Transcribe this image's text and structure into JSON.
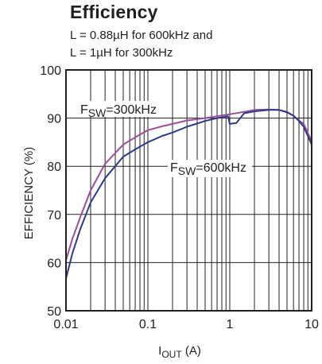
{
  "chart_data": {
    "type": "line",
    "title": "Efficiency",
    "subtitle_lines": [
      "L = 0.88µH for 600kHz and",
      "L = 1µH for 300kHz"
    ],
    "xlabel_main": "I",
    "xlabel_sub": "OUT",
    "xlabel_unit": " (A)",
    "ylabel": "EFFICIENCY (%)",
    "x_scale": "log",
    "xlim": [
      0.01,
      10
    ],
    "ylim": [
      50,
      100
    ],
    "x_ticks": [
      0.01,
      0.1,
      1,
      10
    ],
    "x_tick_labels": [
      "0.01",
      "0.1",
      "1",
      "10"
    ],
    "y_ticks": [
      50,
      60,
      70,
      80,
      90,
      100
    ],
    "y_tick_labels": [
      "50",
      "60",
      "70",
      "80",
      "90",
      "100"
    ],
    "grid": true,
    "series": [
      {
        "name": "FSW=300kHz",
        "name_main": "F",
        "name_sub": "SW",
        "name_rest": "=300kHz",
        "color": "#9b4f96",
        "x": [
          0.01,
          0.012,
          0.015,
          0.02,
          0.03,
          0.05,
          0.07,
          0.1,
          0.15,
          0.2,
          0.3,
          0.5,
          0.7,
          1,
          1.5,
          2,
          3,
          4,
          5,
          6,
          7,
          8,
          10
        ],
        "y": [
          60.5,
          65,
          69.5,
          75,
          80.5,
          84.5,
          86,
          87.5,
          88.3,
          88.8,
          89.5,
          90,
          90.4,
          90.8,
          91.3,
          91.7,
          91.8,
          91.7,
          91.3,
          90.5,
          89.5,
          88.8,
          85.2
        ]
      },
      {
        "name": "FSW=600kHz",
        "name_main": "F",
        "name_sub": "SW",
        "name_rest": "=600kHz",
        "color": "#2e3a87",
        "x": [
          0.01,
          0.012,
          0.015,
          0.02,
          0.03,
          0.05,
          0.07,
          0.1,
          0.15,
          0.2,
          0.3,
          0.5,
          0.7,
          0.95,
          1.0,
          1.2,
          1.5,
          2,
          3,
          4,
          5,
          6,
          7,
          8,
          10
        ],
        "y": [
          56.7,
          62,
          67,
          72.5,
          77.5,
          82,
          83.5,
          85,
          86.3,
          87,
          88.2,
          89.4,
          90,
          90.4,
          88.8,
          89,
          91,
          91.4,
          91.7,
          91.7,
          91.2,
          90.5,
          89.4,
          88.2,
          84.5
        ]
      }
    ],
    "annotations": [
      {
        "series": 0,
        "text_main": "F",
        "text_sub": "SW",
        "text_rest": "=300kHz"
      },
      {
        "series": 1,
        "text_main": "F",
        "text_sub": "SW",
        "text_rest": "=600kHz"
      }
    ]
  }
}
